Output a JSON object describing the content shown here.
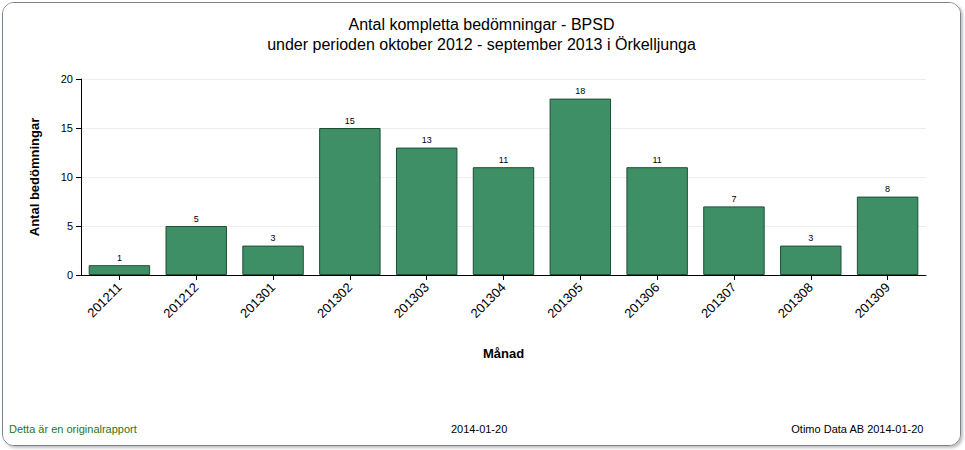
{
  "chart_data": {
    "type": "bar",
    "title": "Antal kompletta bedömningar - BPSD",
    "subtitle": "under perioden oktober 2012 - september 2013 i Örkelljunga",
    "x_label": "Månad",
    "y_label": "Antal bedömningar",
    "categories": [
      "201211",
      "201212",
      "201301",
      "201302",
      "201303",
      "201304",
      "201305",
      "201306",
      "201307",
      "201308",
      "201309"
    ],
    "values": [
      1,
      5,
      3,
      15,
      13,
      11,
      18,
      11,
      7,
      3,
      8
    ],
    "color": "#3f8f66",
    "ylim": [
      0,
      20
    ],
    "yticks": [
      0,
      5,
      10,
      15,
      20
    ],
    "grid": true,
    "data_labels": true,
    "annotations": [
      "Detta är en originalrapport",
      "2014-01-20",
      "Otimo Data AB 2014-01-20"
    ]
  }
}
